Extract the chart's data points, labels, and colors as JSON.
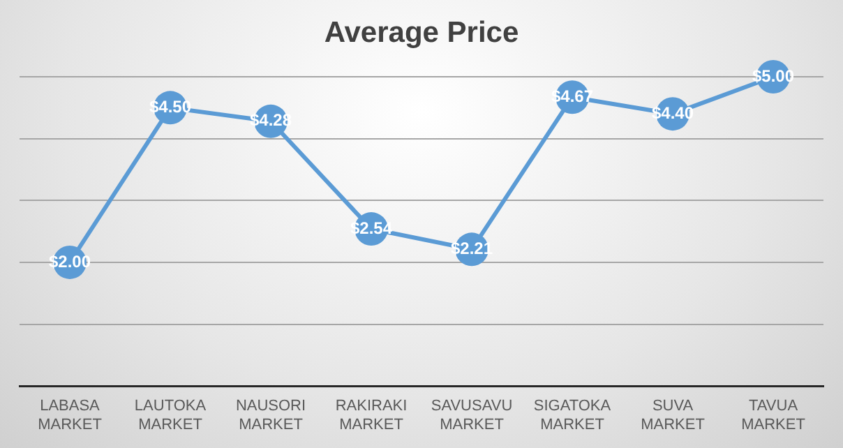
{
  "chart_data": {
    "type": "line",
    "title": "Average Price",
    "categories": [
      "LABASA MARKET",
      "LAUTOKA MARKET",
      "NAUSORI MARKET",
      "RAKIRAKI MARKET",
      "SAVUSAVU MARKET",
      "SIGATOKA MARKET",
      "SUVA MARKET",
      "TAVUA MARKET"
    ],
    "series": [
      {
        "color": "#5b9bd5",
        "values": [
          2.0,
          4.5,
          4.28,
          2.54,
          2.21,
          4.67,
          4.4,
          5.0
        ],
        "value_labels": [
          "$2.00",
          "$4.50",
          "$4.28",
          "$2.54",
          "$2.21",
          "$4.67",
          "$4.40",
          "$5.00"
        ]
      }
    ],
    "ylim": [
      0,
      5
    ],
    "yticks": [
      {
        "value": 0,
        "label": null
      },
      {
        "value": 1,
        "label": null
      },
      {
        "value": 2,
        "label": null
      },
      {
        "value": 3,
        "label": null
      },
      {
        "value": 4,
        "label": null
      },
      {
        "value": 5,
        "label": null
      }
    ],
    "tick_labels": "x",
    "grid": "y",
    "legend": false,
    "marker": "circle",
    "line_style": "solid"
  }
}
